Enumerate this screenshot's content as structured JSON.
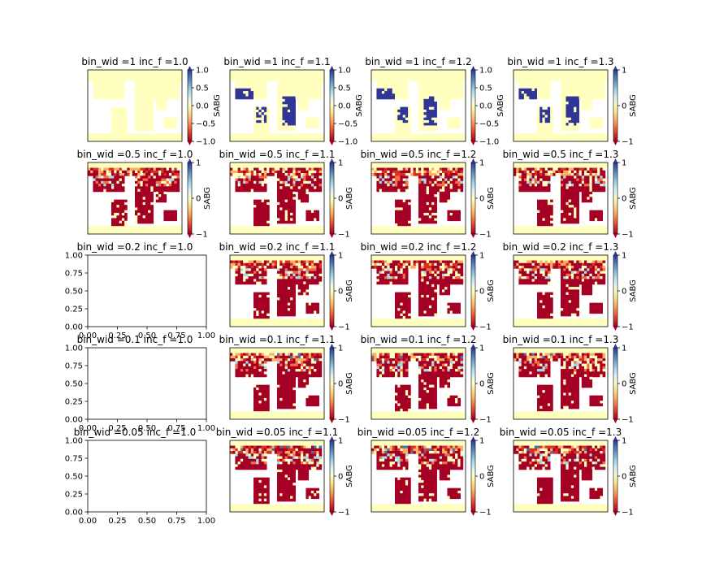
{
  "chart_data": {
    "type": "heatmap",
    "layout": {
      "rows": 5,
      "cols": 4
    },
    "colormap": "RdYlBu",
    "colorbar_label": "SABG",
    "panels": [
      {
        "title": "bin_wid =1 inc_f =1.0",
        "kind": "map",
        "pattern": 0,
        "colorbar": {
          "ticks": [
            "1.0",
            "0.5",
            "0.0",
            "−0.5",
            "−1.0"
          ],
          "vmin": -1,
          "vmax": 1
        }
      },
      {
        "title": "bin_wid =1 inc_f =1.1",
        "kind": "map",
        "pattern": 1,
        "colorbar": {
          "ticks": [
            "1.0",
            "0.5",
            "0.0",
            "−0.5",
            "−1.0"
          ],
          "vmin": -1,
          "vmax": 1
        }
      },
      {
        "title": "bin_wid =1 inc_f =1.2",
        "kind": "map",
        "pattern": 1,
        "colorbar": {
          "ticks": [
            "1.0",
            "0.5",
            "0.0",
            "−0.5",
            "−1.0"
          ],
          "vmin": -1,
          "vmax": 1
        }
      },
      {
        "title": "bin_wid =1 inc_f =1.3",
        "kind": "map",
        "pattern": 1,
        "colorbar": {
          "ticks": [
            "1",
            "0",
            "−1"
          ],
          "vmin": -1,
          "vmax": 1
        }
      },
      {
        "title": "bin_wid =0.5 inc_f =1.0",
        "kind": "map",
        "pattern": 2,
        "colorbar": {
          "ticks": [
            "1",
            "0",
            "−1"
          ],
          "vmin": -1,
          "vmax": 1
        }
      },
      {
        "title": "bin_wid =0.5 inc_f =1.1",
        "kind": "map",
        "pattern": 2,
        "colorbar": {
          "ticks": [
            "1",
            "0",
            "−1"
          ],
          "vmin": -1,
          "vmax": 1
        }
      },
      {
        "title": "bin_wid =0.5 inc_f =1.2",
        "kind": "map",
        "pattern": 2,
        "colorbar": {
          "ticks": [
            "1",
            "0",
            "−1"
          ],
          "vmin": -1,
          "vmax": 1
        }
      },
      {
        "title": "bin_wid =0.5 inc_f =1.3",
        "kind": "map",
        "pattern": 2,
        "colorbar": {
          "ticks": [
            "1",
            "0",
            "−1"
          ],
          "vmin": -1,
          "vmax": 1
        }
      },
      {
        "title": "bin_wid =0.2 inc_f =1.0",
        "kind": "empty",
        "xticks": [
          "0.00",
          "0.25",
          "0.50",
          "0.75",
          "1.00"
        ],
        "yticks": [
          "0.00",
          "0.25",
          "0.50",
          "0.75",
          "1.00"
        ]
      },
      {
        "title": "bin_wid =0.2 inc_f =1.1",
        "kind": "map",
        "pattern": 2,
        "colorbar": {
          "ticks": [
            "1",
            "0",
            "−1"
          ],
          "vmin": -1,
          "vmax": 1
        }
      },
      {
        "title": "bin_wid =0.2 inc_f =1.2",
        "kind": "map",
        "pattern": 2,
        "colorbar": {
          "ticks": [
            "1",
            "0",
            "−1"
          ],
          "vmin": -1,
          "vmax": 1
        }
      },
      {
        "title": "bin_wid =0.2 inc_f =1.3",
        "kind": "map",
        "pattern": 2,
        "colorbar": {
          "ticks": [
            "1",
            "0",
            "−1"
          ],
          "vmin": -1,
          "vmax": 1
        }
      },
      {
        "title": "bin_wid =0.1 inc_f =1.0",
        "kind": "empty",
        "xticks": [
          "0.00",
          "0.25",
          "0.50",
          "0.75",
          "1.00"
        ],
        "yticks": [
          "0.00",
          "0.25",
          "0.50",
          "0.75",
          "1.00"
        ]
      },
      {
        "title": "bin_wid =0.1 inc_f =1.1",
        "kind": "map",
        "pattern": 3,
        "colorbar": {
          "ticks": [
            "1",
            "0",
            "−1"
          ],
          "vmin": -1,
          "vmax": 1
        }
      },
      {
        "title": "bin_wid =0.1 inc_f =1.2",
        "kind": "map",
        "pattern": 3,
        "colorbar": {
          "ticks": [
            "1",
            "0",
            "−1"
          ],
          "vmin": -1,
          "vmax": 1
        }
      },
      {
        "title": "bin_wid =0.1 inc_f =1.3",
        "kind": "map",
        "pattern": 3,
        "colorbar": {
          "ticks": [
            "1",
            "0",
            "−1"
          ],
          "vmin": -1,
          "vmax": 1
        }
      },
      {
        "title": "bin_wid =0.05 inc_f =1.0",
        "kind": "empty",
        "xticks": [
          "0.00",
          "0.25",
          "0.50",
          "0.75",
          "1.00"
        ],
        "yticks": [
          "0.00",
          "0.25",
          "0.50",
          "0.75",
          "1.00"
        ]
      },
      {
        "title": "bin_wid =0.05 inc_f =1.1",
        "kind": "map",
        "pattern": 3,
        "colorbar": {
          "ticks": [
            "1",
            "0",
            "−1"
          ],
          "vmin": -1,
          "vmax": 1
        }
      },
      {
        "title": "bin_wid =0.05 inc_f =1.2",
        "kind": "map",
        "pattern": 3,
        "colorbar": {
          "ticks": [
            "1",
            "0",
            "−1"
          ],
          "vmin": -1,
          "vmax": 1
        }
      },
      {
        "title": "bin_wid =0.05 inc_f =1.3",
        "kind": "map",
        "pattern": 3,
        "colorbar": {
          "ticks": [
            "1",
            "0",
            "−1"
          ],
          "vmin": -1,
          "vmax": 1
        }
      }
    ]
  },
  "colors": {
    "dark_red": "#a50026",
    "red": "#d73027",
    "orange": "#f46d43",
    "light_orange": "#fdae61",
    "pale_yellow": "#ffffbf",
    "light_blue": "#abd9e9",
    "blue": "#4575b4",
    "dark_blue": "#313695"
  }
}
